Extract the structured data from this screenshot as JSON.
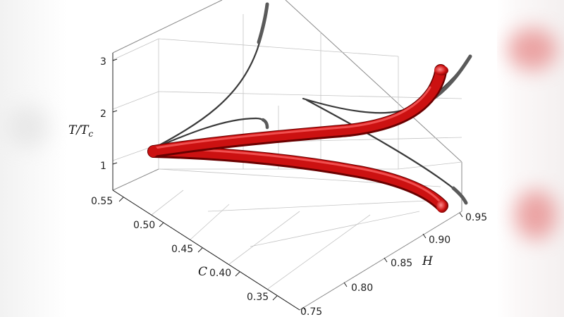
{
  "chart_data": {
    "type": "line3d",
    "title": "",
    "axes": {
      "x": {
        "label": "C",
        "range": [
          0.31,
          0.57
        ],
        "ticks": [
          "0.35",
          "0.40",
          "0.45",
          "0.50",
          "0.55"
        ]
      },
      "y": {
        "label": "H",
        "range": [
          0.75,
          0.98
        ],
        "ticks": [
          "0.75",
          "0.80",
          "0.85",
          "0.90",
          "0.95"
        ]
      },
      "z": {
        "label_main": "T",
        "label_sep": "/",
        "label_sub_main": "T",
        "label_sub": "c",
        "range": [
          0.7,
          3.4
        ],
        "ticks": [
          "1",
          "2",
          "3"
        ]
      }
    },
    "grid": true,
    "colors": {
      "tube": "#cc1111",
      "tube_dark": "#7a0000",
      "tube_light": "#ff7a7a",
      "projection": "#555555",
      "projection_dark": "#3a3a3a"
    }
  }
}
